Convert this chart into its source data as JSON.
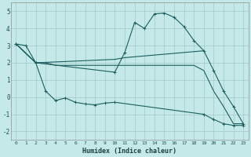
{
  "xlabel": "Humidex (Indice chaleur)",
  "background_color": "#c5e8e8",
  "grid_color": "#a0c8c8",
  "line_color": "#1a6060",
  "xlim": [
    -0.5,
    23.5
  ],
  "ylim": [
    -2.5,
    5.5
  ],
  "yticks": [
    -2,
    -1,
    0,
    1,
    2,
    3,
    4,
    5
  ],
  "xticks": [
    0,
    1,
    2,
    3,
    4,
    5,
    6,
    7,
    8,
    9,
    10,
    11,
    12,
    13,
    14,
    15,
    16,
    17,
    18,
    19,
    20,
    21,
    22,
    23
  ],
  "series1_x": [
    0,
    1,
    2,
    10,
    11,
    12,
    13,
    14,
    15,
    16,
    17,
    18,
    19,
    20,
    21,
    22,
    23
  ],
  "series1_y": [
    3.1,
    3.0,
    2.0,
    1.45,
    2.6,
    4.35,
    4.0,
    4.85,
    4.9,
    4.65,
    4.1,
    3.3,
    2.7,
    1.55,
    0.35,
    -0.55,
    -1.55
  ],
  "series2_x": [
    0,
    2,
    10,
    11,
    12,
    13,
    14,
    15,
    16,
    17,
    18,
    19
  ],
  "series2_y": [
    3.1,
    2.0,
    2.2,
    2.3,
    2.35,
    2.4,
    2.45,
    2.5,
    2.55,
    2.6,
    2.65,
    2.7
  ],
  "series3_x": [
    0,
    2,
    3,
    4,
    5,
    6,
    7,
    8,
    9,
    10,
    19,
    20,
    21,
    22,
    23
  ],
  "series3_y": [
    3.1,
    2.0,
    0.35,
    -0.2,
    -0.05,
    -0.3,
    -0.4,
    -0.45,
    -0.35,
    -0.3,
    -1.0,
    -1.3,
    -1.55,
    -1.65,
    -1.65
  ],
  "series4_x": [
    0,
    2,
    3,
    4,
    5,
    6,
    7,
    8,
    9,
    10,
    11,
    12,
    13,
    14,
    15,
    16,
    17,
    18,
    19,
    20,
    21,
    22,
    23
  ],
  "series4_y": [
    3.1,
    2.0,
    2.0,
    1.85,
    1.85,
    1.85,
    1.85,
    1.85,
    1.85,
    1.85,
    1.85,
    1.85,
    1.85,
    1.85,
    1.85,
    1.85,
    1.85,
    1.85,
    1.55,
    0.35,
    -0.55,
    -1.55,
    -1.55
  ],
  "series1_marker_x": [
    0,
    1,
    2,
    10,
    11,
    12,
    13,
    14,
    15,
    16,
    17,
    18,
    19,
    20,
    21,
    22,
    23
  ],
  "series3_marker_x": [
    2,
    3,
    4,
    5,
    6,
    7,
    8,
    9,
    10,
    19,
    20,
    21,
    22,
    23
  ]
}
